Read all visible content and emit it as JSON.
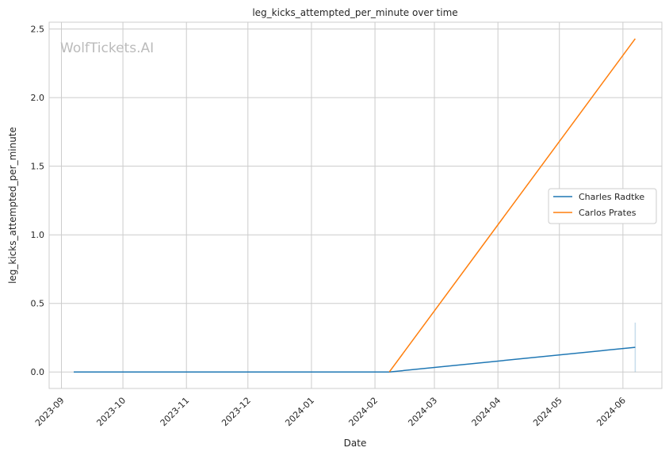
{
  "chart_data": {
    "type": "line",
    "title": "leg_kicks_attempted_per_minute over time",
    "xlabel": "Date",
    "ylabel": "leg_kicks_attempted_per_minute",
    "watermark": "WolfTickets.AI",
    "xlim": [
      "2023-08-26",
      "2024-06-20"
    ],
    "ylim": [
      -0.12,
      2.55
    ],
    "x_ticks": [
      "2023-09",
      "2023-10",
      "2023-11",
      "2023-12",
      "2024-01",
      "2024-02",
      "2024-03",
      "2024-04",
      "2024-05",
      "2024-06"
    ],
    "y_ticks": [
      0.0,
      0.5,
      1.0,
      1.5,
      2.0,
      2.5
    ],
    "y_tick_labels": [
      "0.0",
      "0.5",
      "1.0",
      "1.5",
      "2.0",
      "2.5"
    ],
    "grid": true,
    "legend_position": "right",
    "series": [
      {
        "name": "Charles Radtke",
        "color": "#1f77b4",
        "x": [
          "2023-09-07",
          "2024-02-08",
          "2024-06-07"
        ],
        "y": [
          0.0,
          0.0,
          0.18
        ],
        "ci": {
          "x": "2024-06-07",
          "low": 0.0,
          "high": 0.36
        }
      },
      {
        "name": "Carlos Prates",
        "color": "#ff7f0e",
        "x": [
          "2024-02-08",
          "2024-06-07"
        ],
        "y": [
          0.0,
          2.43
        ]
      }
    ]
  }
}
